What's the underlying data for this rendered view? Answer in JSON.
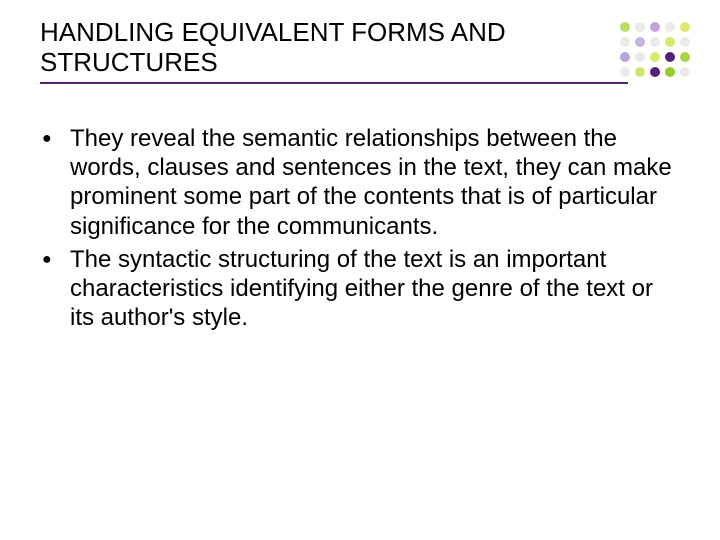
{
  "title": "HANDLING EQUIVALENT FORMS AND STRUCTURES",
  "bullets": [
    "They reveal the semantic relationships between the words, clauses and sentences in the text, they can make prominent some part of the contents that is of particular significance for the communicants.",
    "The syntactic structuring of the text is an important characteristics identifying either the genre of the text or its author's style."
  ],
  "colors": {
    "underline": "#51247a",
    "text": "#000000",
    "background": "#ffffff"
  },
  "decoration": {
    "dot_grid": {
      "rows": 4,
      "cols": 5,
      "colors": [
        [
          "#b9df67",
          "#eaeaea",
          "#c4a2e1",
          "#eaeaea",
          "#dfe96a"
        ],
        [
          "#eaeaea",
          "#c6b4e0",
          "#eaeaea",
          "#d7e96a",
          "#eaeaea"
        ],
        [
          "#b9a3dc",
          "#eaeaea",
          "#d7e96a",
          "#51247a",
          "#a5d63f"
        ],
        [
          "#eaeaea",
          "#cbe86a",
          "#51247a",
          "#93cd2b",
          "#eaeaea"
        ]
      ]
    }
  },
  "typography": {
    "title_fontsize": 26,
    "body_fontsize": 24,
    "font_family": "Arial"
  }
}
